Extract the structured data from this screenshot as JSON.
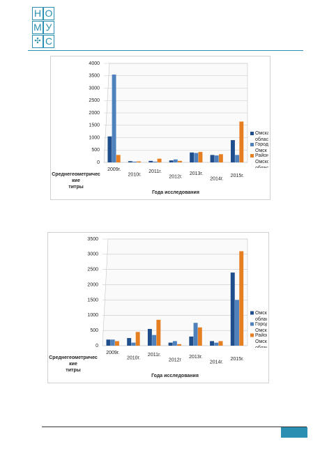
{
  "header": {
    "logo": [
      "Н",
      "О",
      "М",
      "У",
      "С"
    ]
  },
  "chart_data": [
    {
      "type": "bar",
      "categories": [
        "2009г.",
        "2010г.",
        "2011г.",
        "2012г.",
        "2013г.",
        "2014г.",
        "2015г."
      ],
      "series": [
        {
          "name": "Омская область",
          "color": "#1f4e8c",
          "values": [
            1050,
            50,
            60,
            80,
            400,
            300,
            900
          ]
        },
        {
          "name": "Город Омск",
          "color": "#4f81bd",
          "values": [
            3550,
            30,
            30,
            120,
            380,
            280,
            300
          ]
        },
        {
          "name": "Районы Омской области",
          "color": "#e67e22",
          "values": [
            300,
            40,
            150,
            60,
            420,
            330,
            1650
          ]
        }
      ],
      "ylim": [
        0,
        4000
      ],
      "yticks": [
        0,
        500,
        1000,
        1500,
        2000,
        2500,
        3000,
        3500,
        4000
      ],
      "grid": true,
      "y_label_lines": [
        "Среднегеометричес",
        "кие",
        "титры"
      ],
      "x_label": "Года исследования",
      "legend": "right"
    },
    {
      "type": "bar",
      "categories": [
        "2009г.",
        "2010г.",
        "2011г.",
        "2012г",
        "2013г.",
        "2014г.",
        "2015г."
      ],
      "series": [
        {
          "name": "Омская область",
          "color": "#1f4e8c",
          "values": [
            200,
            250,
            550,
            100,
            300,
            150,
            2400
          ]
        },
        {
          "name": "Город Омск",
          "color": "#4f81bd",
          "values": [
            200,
            100,
            350,
            150,
            750,
            100,
            1500
          ]
        },
        {
          "name": "Районы Омской области",
          "color": "#e67e22",
          "values": [
            150,
            450,
            850,
            50,
            600,
            150,
            3100
          ]
        }
      ],
      "ylim": [
        0,
        3500
      ],
      "yticks": [
        0,
        500,
        1000,
        1500,
        2000,
        2500,
        3000,
        3500
      ],
      "grid": true,
      "y_label_lines": [
        "Среднегеометричес",
        "кие",
        "титры"
      ],
      "x_label": "Года исследования",
      "legend": "right"
    }
  ]
}
